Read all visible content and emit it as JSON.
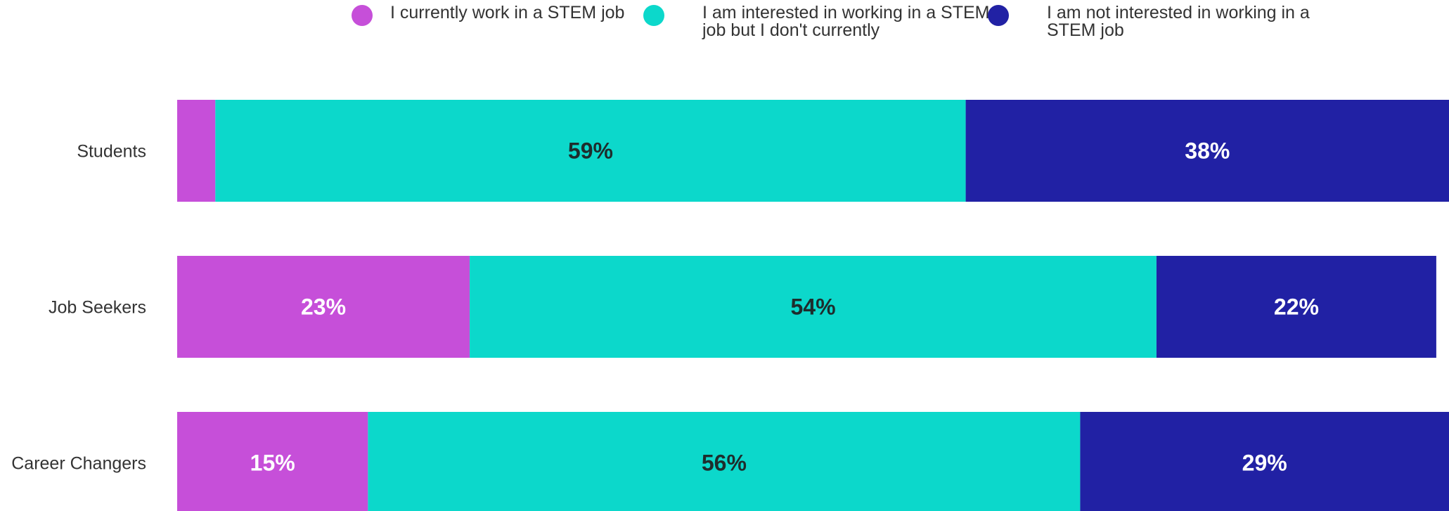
{
  "chart_data": {
    "type": "bar",
    "orientation": "horizontal",
    "stacked": true,
    "categories": [
      "Students",
      "Job Seekers",
      "Career Changers"
    ],
    "series": [
      {
        "name": "I currently work in a STEM job",
        "values": [
          3,
          23,
          15
        ],
        "labels": [
          "",
          "23%",
          "15%"
        ],
        "color": "#c64fd9"
      },
      {
        "name": "I am interested in working in a STEM job but I don't currently",
        "values": [
          59,
          54,
          56
        ],
        "labels": [
          "59%",
          "54%",
          "56%"
        ],
        "color": "#0cd8cb"
      },
      {
        "name": "I am not interested in working in a STEM job",
        "values": [
          38,
          22,
          29
        ],
        "labels": [
          "38%",
          "22%",
          "29%"
        ],
        "color": "#2121a4"
      }
    ],
    "xlim": [
      0,
      100
    ],
    "legend_position": "top",
    "grid": false,
    "label_colors": {
      "light": "#ffffff",
      "dark": "#1e2d2d"
    },
    "category_label_color": "#333333"
  }
}
